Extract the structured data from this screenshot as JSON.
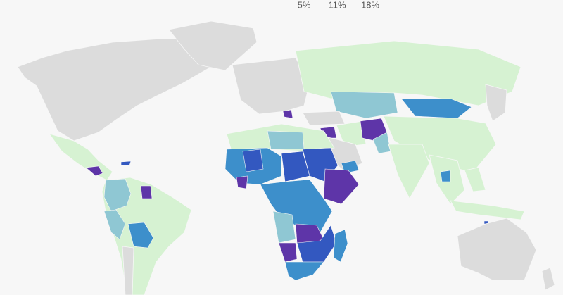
{
  "legend": {
    "labels": [
      "5%",
      "11%",
      "18%"
    ]
  }
}
